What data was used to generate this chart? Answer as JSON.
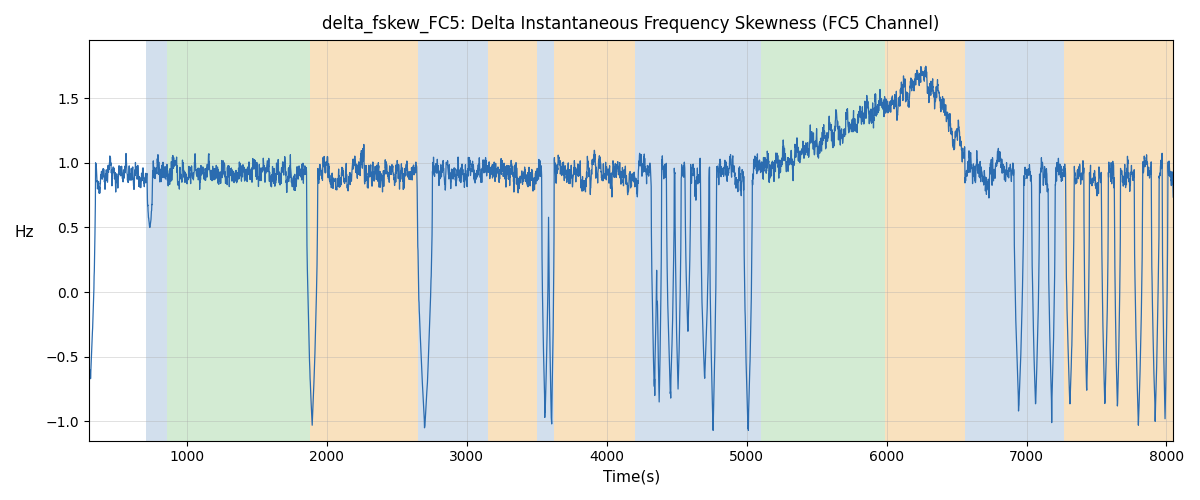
{
  "title": "delta_fskew_FC5: Delta Instantaneous Frequency Skewness (FC5 Channel)",
  "xlabel": "Time(s)",
  "ylabel": "Hz",
  "xlim": [
    300,
    8050
  ],
  "ylim": [
    -1.15,
    1.95
  ],
  "line_color": "#2b6cb0",
  "line_width": 0.9,
  "bg_bands": [
    {
      "xmin": 710,
      "xmax": 860,
      "color": "#aec6df",
      "alpha": 0.55
    },
    {
      "xmin": 860,
      "xmax": 1880,
      "color": "#a8d8a8",
      "alpha": 0.5
    },
    {
      "xmin": 1880,
      "xmax": 2650,
      "color": "#f5c98a",
      "alpha": 0.55
    },
    {
      "xmin": 2650,
      "xmax": 2850,
      "color": "#aec6df",
      "alpha": 0.55
    },
    {
      "xmin": 2850,
      "xmax": 3150,
      "color": "#aec6df",
      "alpha": 0.55
    },
    {
      "xmin": 3150,
      "xmax": 3500,
      "color": "#f5c98a",
      "alpha": 0.55
    },
    {
      "xmin": 3500,
      "xmax": 3620,
      "color": "#aec6df",
      "alpha": 0.55
    },
    {
      "xmin": 3620,
      "xmax": 4200,
      "color": "#f5c98a",
      "alpha": 0.55
    },
    {
      "xmin": 4200,
      "xmax": 4880,
      "color": "#aec6df",
      "alpha": 0.55
    },
    {
      "xmin": 4880,
      "xmax": 4960,
      "color": "#aec6df",
      "alpha": 0.55
    },
    {
      "xmin": 4960,
      "xmax": 5100,
      "color": "#aec6df",
      "alpha": 0.55
    },
    {
      "xmin": 5100,
      "xmax": 5990,
      "color": "#a8d8a8",
      "alpha": 0.5
    },
    {
      "xmin": 5990,
      "xmax": 6100,
      "color": "#f5c98a",
      "alpha": 0.55
    },
    {
      "xmin": 6100,
      "xmax": 6560,
      "color": "#f5c98a",
      "alpha": 0.55
    },
    {
      "xmin": 6560,
      "xmax": 7270,
      "color": "#aec6df",
      "alpha": 0.55
    },
    {
      "xmin": 7270,
      "xmax": 8050,
      "color": "#f5c98a",
      "alpha": 0.55
    }
  ],
  "xticks": [
    1000,
    2000,
    3000,
    4000,
    5000,
    6000,
    7000,
    8000
  ],
  "yticks": [
    -1.0,
    -0.5,
    0.0,
    0.5,
    1.0,
    1.5
  ],
  "grid_color": "#aaaaaa",
  "grid_alpha": 0.5,
  "seed": 12345
}
